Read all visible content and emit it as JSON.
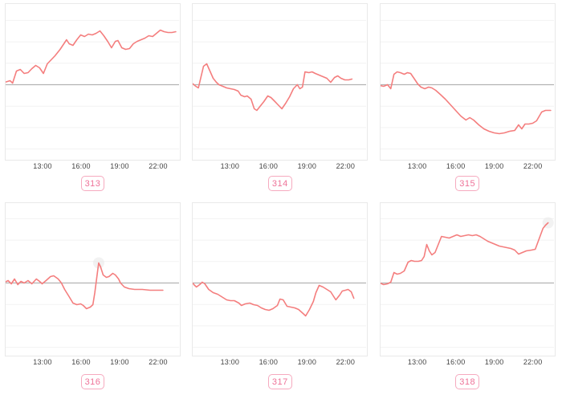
{
  "page": {
    "background": "#ffffff",
    "description": "grid of six sparkline time-series subplots"
  },
  "colors": {
    "line": "#f47e7e",
    "baseline": "#b3b3b3",
    "gridline": "#f2f2f2",
    "box_border": "#e9e9e9",
    "tick_label": "#444444",
    "badge_border": "#f6aabf",
    "badge_text": "#ee7298",
    "halo": "#e9e9e9"
  },
  "chart_data": {
    "type": "line",
    "layout": "2 rows x 3 columns of small multiples",
    "xlabel": "",
    "ylabel": "",
    "x_unit": "time of day (hours)",
    "y_unit": "relative value vs. gray zero baseline (no y tick labels shown)",
    "x_range_hours": [
      10.0,
      23.5
    ],
    "x_tick_labels": [
      "13:00",
      "16:00",
      "19:00",
      "22:00"
    ],
    "x_tick_hours": [
      13,
      16,
      19,
      22
    ],
    "grid": "faint horizontal gridlines, darker zero baseline",
    "legend": "none",
    "charts": [
      {
        "label": "313",
        "halo_point": null,
        "points": [
          [
            10.1,
            3
          ],
          [
            10.5,
            5
          ],
          [
            10.7,
            2
          ],
          [
            11.0,
            17
          ],
          [
            11.3,
            19
          ],
          [
            11.6,
            14
          ],
          [
            11.9,
            15
          ],
          [
            12.2,
            20
          ],
          [
            12.5,
            24
          ],
          [
            12.8,
            21
          ],
          [
            13.1,
            14
          ],
          [
            13.4,
            26
          ],
          [
            13.7,
            31
          ],
          [
            14.0,
            36
          ],
          [
            14.4,
            44
          ],
          [
            14.9,
            56
          ],
          [
            15.1,
            51
          ],
          [
            15.4,
            49
          ],
          [
            15.7,
            56
          ],
          [
            16.0,
            62
          ],
          [
            16.3,
            60
          ],
          [
            16.6,
            63
          ],
          [
            16.9,
            62
          ],
          [
            17.2,
            64
          ],
          [
            17.5,
            67
          ],
          [
            17.8,
            61
          ],
          [
            18.1,
            54
          ],
          [
            18.4,
            46
          ],
          [
            18.7,
            54
          ],
          [
            18.9,
            55
          ],
          [
            19.2,
            46
          ],
          [
            19.5,
            44
          ],
          [
            19.8,
            45
          ],
          [
            20.1,
            51
          ],
          [
            20.4,
            54
          ],
          [
            20.7,
            56
          ],
          [
            21.0,
            58
          ],
          [
            21.3,
            61
          ],
          [
            21.6,
            60
          ],
          [
            21.9,
            64
          ],
          [
            22.2,
            68
          ],
          [
            22.5,
            66
          ],
          [
            22.8,
            65
          ],
          [
            23.1,
            65
          ],
          [
            23.4,
            66
          ]
        ]
      },
      {
        "label": "314",
        "halo_point": null,
        "points": [
          [
            10.1,
            2
          ],
          [
            10.4,
            -2
          ],
          [
            10.6,
            -4
          ],
          [
            11.0,
            23
          ],
          [
            11.25,
            26
          ],
          [
            11.5,
            17
          ],
          [
            11.75,
            8
          ],
          [
            12.0,
            3
          ],
          [
            12.2,
            0
          ],
          [
            12.5,
            -2
          ],
          [
            12.8,
            -4
          ],
          [
            13.1,
            -5
          ],
          [
            13.4,
            -6
          ],
          [
            13.7,
            -8
          ],
          [
            13.9,
            -13
          ],
          [
            14.2,
            -15
          ],
          [
            14.4,
            -14
          ],
          [
            14.7,
            -18
          ],
          [
            14.95,
            -30
          ],
          [
            15.15,
            -32
          ],
          [
            15.4,
            -27
          ],
          [
            15.7,
            -21
          ],
          [
            16.0,
            -14
          ],
          [
            16.25,
            -16
          ],
          [
            16.5,
            -20
          ],
          [
            16.8,
            -25
          ],
          [
            17.1,
            -30
          ],
          [
            17.4,
            -23
          ],
          [
            17.7,
            -15
          ],
          [
            18.0,
            -5
          ],
          [
            18.3,
            0
          ],
          [
            18.5,
            -5
          ],
          [
            18.7,
            -3
          ],
          [
            18.9,
            16
          ],
          [
            19.2,
            15
          ],
          [
            19.45,
            16
          ],
          [
            19.7,
            14
          ],
          [
            20.0,
            12
          ],
          [
            20.3,
            10
          ],
          [
            20.6,
            8
          ],
          [
            20.9,
            3
          ],
          [
            21.2,
            9
          ],
          [
            21.45,
            11
          ],
          [
            21.7,
            8
          ],
          [
            22.0,
            6
          ],
          [
            22.3,
            6
          ],
          [
            22.55,
            7
          ]
        ]
      },
      {
        "label": "315",
        "halo_point": null,
        "points": [
          [
            10.1,
            -1
          ],
          [
            10.4,
            -2
          ],
          [
            10.7,
            0
          ],
          [
            10.95,
            -5
          ],
          [
            11.2,
            13
          ],
          [
            11.45,
            16
          ],
          [
            11.7,
            15
          ],
          [
            12.0,
            13
          ],
          [
            12.25,
            15
          ],
          [
            12.5,
            14
          ],
          [
            12.8,
            7
          ],
          [
            13.05,
            1
          ],
          [
            13.3,
            -3
          ],
          [
            13.6,
            -5
          ],
          [
            13.9,
            -3
          ],
          [
            14.15,
            -4
          ],
          [
            14.45,
            -7
          ],
          [
            14.8,
            -12
          ],
          [
            15.2,
            -18
          ],
          [
            15.6,
            -25
          ],
          [
            16.0,
            -32
          ],
          [
            16.4,
            -39
          ],
          [
            16.8,
            -44
          ],
          [
            17.1,
            -41
          ],
          [
            17.4,
            -44
          ],
          [
            17.8,
            -50
          ],
          [
            18.2,
            -55
          ],
          [
            18.6,
            -58
          ],
          [
            19.0,
            -60
          ],
          [
            19.4,
            -61
          ],
          [
            19.8,
            -60
          ],
          [
            20.2,
            -58
          ],
          [
            20.6,
            -57
          ],
          [
            20.9,
            -50
          ],
          [
            21.15,
            -55
          ],
          [
            21.4,
            -49
          ],
          [
            21.7,
            -49
          ],
          [
            22.0,
            -48
          ],
          [
            22.3,
            -45
          ],
          [
            22.7,
            -34
          ],
          [
            23.0,
            -32
          ],
          [
            23.4,
            -32
          ]
        ]
      },
      {
        "label": "316",
        "halo_point": [
          17.4,
          25
        ],
        "points": [
          [
            10.1,
            1
          ],
          [
            10.35,
            3
          ],
          [
            10.6,
            -1
          ],
          [
            10.85,
            5
          ],
          [
            11.1,
            -2
          ],
          [
            11.35,
            2
          ],
          [
            11.6,
            0
          ],
          [
            11.9,
            3
          ],
          [
            12.2,
            -1
          ],
          [
            12.55,
            5
          ],
          [
            12.8,
            2
          ],
          [
            13.0,
            -1
          ],
          [
            13.3,
            3
          ],
          [
            13.65,
            8
          ],
          [
            13.9,
            9
          ],
          [
            14.25,
            5
          ],
          [
            14.5,
            0
          ],
          [
            14.75,
            -8
          ],
          [
            15.1,
            -17
          ],
          [
            15.4,
            -25
          ],
          [
            15.7,
            -27
          ],
          [
            16.0,
            -26
          ],
          [
            16.2,
            -28
          ],
          [
            16.45,
            -32
          ],
          [
            16.75,
            -30
          ],
          [
            16.95,
            -27
          ],
          [
            17.1,
            -12
          ],
          [
            17.4,
            25
          ],
          [
            17.55,
            20
          ],
          [
            17.75,
            10
          ],
          [
            18.0,
            7
          ],
          [
            18.2,
            8
          ],
          [
            18.5,
            12
          ],
          [
            18.7,
            10
          ],
          [
            18.95,
            5
          ],
          [
            19.1,
            0
          ],
          [
            19.4,
            -5
          ],
          [
            19.75,
            -7
          ],
          [
            20.2,
            -8
          ],
          [
            20.8,
            -8
          ],
          [
            21.4,
            -9
          ],
          [
            22.0,
            -9
          ],
          [
            22.4,
            -9
          ]
        ]
      },
      {
        "label": "317",
        "halo_point": null,
        "points": [
          [
            10.1,
            1
          ],
          [
            10.25,
            -2
          ],
          [
            10.45,
            -5
          ],
          [
            10.7,
            -2
          ],
          [
            10.9,
            1
          ],
          [
            11.1,
            -1
          ],
          [
            11.4,
            -8
          ],
          [
            11.75,
            -12
          ],
          [
            12.1,
            -14
          ],
          [
            12.5,
            -18
          ],
          [
            12.8,
            -21
          ],
          [
            13.1,
            -22
          ],
          [
            13.4,
            -22
          ],
          [
            13.75,
            -25
          ],
          [
            13.95,
            -28
          ],
          [
            14.25,
            -26
          ],
          [
            14.6,
            -25
          ],
          [
            14.9,
            -27
          ],
          [
            15.2,
            -28
          ],
          [
            15.5,
            -31
          ],
          [
            15.8,
            -33
          ],
          [
            16.1,
            -34
          ],
          [
            16.4,
            -32
          ],
          [
            16.75,
            -28
          ],
          [
            16.95,
            -20
          ],
          [
            17.2,
            -21
          ],
          [
            17.5,
            -29
          ],
          [
            17.8,
            -30
          ],
          [
            18.1,
            -31
          ],
          [
            18.4,
            -33
          ],
          [
            18.75,
            -38
          ],
          [
            18.95,
            -41
          ],
          [
            19.25,
            -33
          ],
          [
            19.55,
            -23
          ],
          [
            19.75,
            -12
          ],
          [
            20.0,
            -3
          ],
          [
            20.3,
            -5
          ],
          [
            20.6,
            -8
          ],
          [
            20.9,
            -11
          ],
          [
            21.1,
            -16
          ],
          [
            21.3,
            -21
          ],
          [
            21.6,
            -15
          ],
          [
            21.8,
            -10
          ],
          [
            22.05,
            -9
          ],
          [
            22.25,
            -8
          ],
          [
            22.5,
            -11
          ],
          [
            22.7,
            -19
          ]
        ]
      },
      {
        "label": "318",
        "halo_point": [
          23.2,
          75
        ],
        "points": [
          [
            10.1,
            0
          ],
          [
            10.4,
            -2
          ],
          [
            10.7,
            -1
          ],
          [
            10.95,
            1
          ],
          [
            11.2,
            13
          ],
          [
            11.45,
            11
          ],
          [
            11.7,
            12
          ],
          [
            12.0,
            15
          ],
          [
            12.3,
            26
          ],
          [
            12.55,
            28
          ],
          [
            12.8,
            27
          ],
          [
            13.1,
            27
          ],
          [
            13.35,
            28
          ],
          [
            13.55,
            33
          ],
          [
            13.75,
            48
          ],
          [
            13.95,
            40
          ],
          [
            14.15,
            35
          ],
          [
            14.4,
            38
          ],
          [
            14.9,
            58
          ],
          [
            15.2,
            57
          ],
          [
            15.5,
            56
          ],
          [
            15.8,
            58
          ],
          [
            16.1,
            60
          ],
          [
            16.4,
            58
          ],
          [
            16.7,
            59
          ],
          [
            17.0,
            60
          ],
          [
            17.3,
            59
          ],
          [
            17.6,
            60
          ],
          [
            17.9,
            58
          ],
          [
            18.2,
            55
          ],
          [
            18.5,
            52
          ],
          [
            18.8,
            50
          ],
          [
            19.1,
            48
          ],
          [
            19.4,
            46
          ],
          [
            19.7,
            45
          ],
          [
            20.0,
            44
          ],
          [
            20.3,
            43
          ],
          [
            20.6,
            41
          ],
          [
            20.9,
            36
          ],
          [
            21.2,
            38
          ],
          [
            21.5,
            40
          ],
          [
            21.9,
            41
          ],
          [
            22.2,
            42
          ],
          [
            22.5,
            55
          ],
          [
            22.8,
            68
          ],
          [
            23.0,
            72
          ],
          [
            23.2,
            75
          ]
        ]
      }
    ]
  }
}
